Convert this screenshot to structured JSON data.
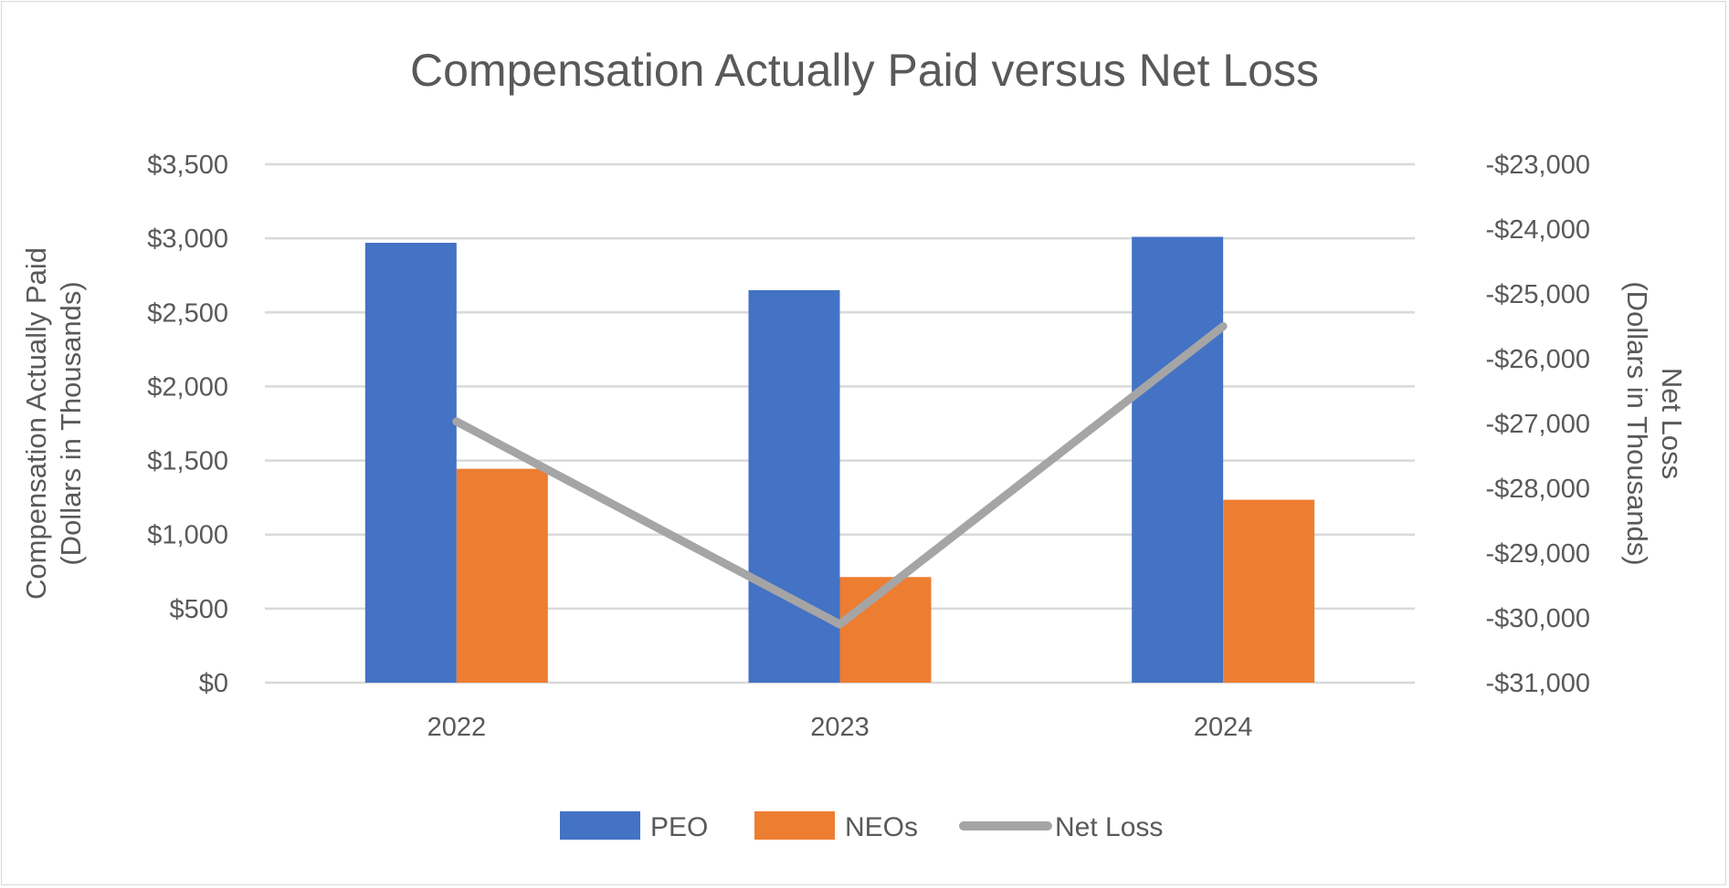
{
  "chart_data": {
    "type": "bar",
    "title": "Compensation Actually Paid versus Net Loss",
    "categories": [
      "2022",
      "2023",
      "2024"
    ],
    "series": [
      {
        "name": "PEO",
        "type": "bar",
        "axis": "left",
        "color": "#4472c4",
        "values": [
          2970,
          2650,
          3010
        ]
      },
      {
        "name": "NEOs",
        "type": "bar",
        "axis": "left",
        "color": "#ed7d31",
        "values": [
          1444,
          713,
          1235
        ]
      },
      {
        "name": "Net Loss",
        "type": "line",
        "axis": "right",
        "color": "#a5a5a5",
        "values": [
          -26970,
          -30100,
          -25500
        ]
      }
    ],
    "ylabel_left": [
      "Compensation Actually Paid",
      "(Dollars in Thousands)"
    ],
    "ylabel_right": [
      "Net Loss",
      "(Dollars in Thousands)"
    ],
    "ylim_left": [
      0,
      3500
    ],
    "ylim_right": [
      -31000,
      -23000
    ],
    "yticks_left": [
      "$0",
      "$500",
      "$1,000",
      "$1,500",
      "$2,000",
      "$2,500",
      "$3,000",
      "$3,500"
    ],
    "yticks_right": [
      "-$31,000",
      "-$30,000",
      "-$29,000",
      "-$28,000",
      "-$27,000",
      "-$26,000",
      "-$25,000",
      "-$24,000",
      "-$23,000"
    ],
    "grid": true,
    "legend": "bottom"
  }
}
